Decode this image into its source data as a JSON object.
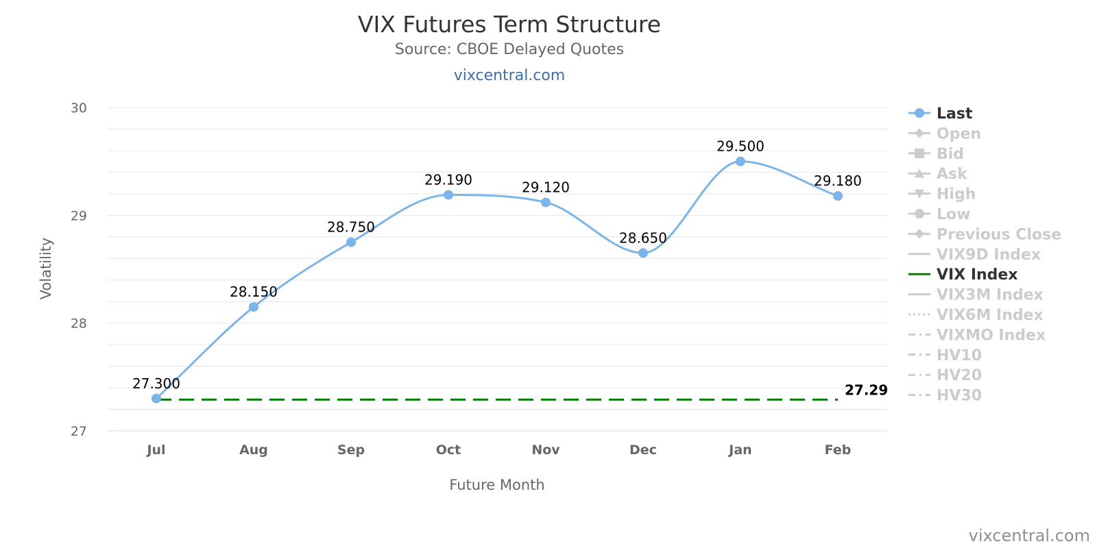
{
  "chart_data": {
    "type": "line",
    "title": "VIX Futures Term Structure",
    "subtitle": "Source: CBOE Delayed Quotes",
    "link_text": "vixcentral.com",
    "credit": "vixcentral.com",
    "xlabel": "Future Month",
    "ylabel": "Volatility",
    "ylim": [
      27,
      30
    ],
    "yticks": [
      "27",
      "28",
      "29",
      "30"
    ],
    "grid": true,
    "legend_position": "right",
    "categories": [
      "Jul",
      "Aug",
      "Sep",
      "Oct",
      "Nov",
      "Dec",
      "Jan",
      "Feb"
    ],
    "series": [
      {
        "name": "Last",
        "color": "#7cb5ec",
        "style": "solid-markers",
        "values": [
          27.3,
          28.15,
          28.75,
          29.19,
          29.12,
          28.65,
          29.5,
          29.18
        ],
        "labels": [
          "27.300",
          "28.150",
          "28.750",
          "29.190",
          "29.120",
          "28.650",
          "29.500",
          "29.180"
        ]
      },
      {
        "name": "VIX Index",
        "color": "#008000",
        "style": "dashed",
        "values": [
          27.29,
          27.29,
          27.29,
          27.29,
          27.29,
          27.29,
          27.29,
          27.29
        ],
        "end_label": "27.29"
      }
    ],
    "legend": [
      {
        "name": "Last",
        "active": true,
        "symbol": "circle",
        "color": "#7cb5ec"
      },
      {
        "name": "Open",
        "active": false,
        "symbol": "diamond",
        "color": "#cccccc"
      },
      {
        "name": "Bid",
        "active": false,
        "symbol": "square",
        "color": "#cccccc"
      },
      {
        "name": "Ask",
        "active": false,
        "symbol": "triangle",
        "color": "#cccccc"
      },
      {
        "name": "High",
        "active": false,
        "symbol": "triangle-down",
        "color": "#cccccc"
      },
      {
        "name": "Low",
        "active": false,
        "symbol": "circle",
        "color": "#cccccc"
      },
      {
        "name": "Previous Close",
        "active": false,
        "symbol": "diamond",
        "color": "#cccccc"
      },
      {
        "name": "VIX9D Index",
        "active": false,
        "symbol": "line",
        "color": "#cccccc"
      },
      {
        "name": "VIX Index",
        "active": true,
        "symbol": "line",
        "color": "#008000"
      },
      {
        "name": "VIX3M Index",
        "active": false,
        "symbol": "line",
        "color": "#cccccc"
      },
      {
        "name": "VIX6M Index",
        "active": false,
        "symbol": "dotted",
        "color": "#cccccc"
      },
      {
        "name": "VIXMO Index",
        "active": false,
        "symbol": "dashdot",
        "color": "#cccccc"
      },
      {
        "name": "HV10",
        "active": false,
        "symbol": "dashdot",
        "color": "#cccccc"
      },
      {
        "name": "HV20",
        "active": false,
        "symbol": "dashdot",
        "color": "#cccccc"
      },
      {
        "name": "HV30",
        "active": false,
        "symbol": "dashdot",
        "color": "#cccccc"
      }
    ]
  }
}
